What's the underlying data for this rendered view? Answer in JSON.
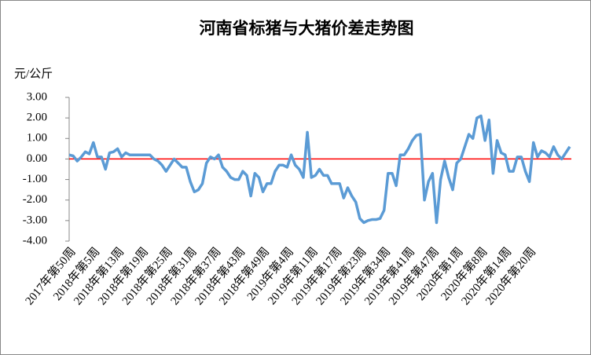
{
  "chart_data": {
    "type": "line",
    "title": "河南省标猪与大猪价差走势图",
    "y_label": "元/公斤",
    "categories": [
      "2017年第50周",
      null,
      null,
      null,
      null,
      null,
      "2018年第5周",
      null,
      null,
      null,
      null,
      null,
      "2018年第13周",
      null,
      null,
      null,
      null,
      null,
      "2018年第19周",
      null,
      null,
      null,
      null,
      null,
      "2018年第25周",
      null,
      null,
      null,
      null,
      null,
      "2018年第31周",
      null,
      null,
      null,
      null,
      null,
      "2018年第37周",
      null,
      null,
      null,
      null,
      null,
      "2018年第43周",
      null,
      null,
      null,
      null,
      null,
      "2018年第49周",
      null,
      null,
      null,
      null,
      null,
      "2019年第4周",
      null,
      null,
      null,
      null,
      null,
      "2019年第11周",
      null,
      null,
      null,
      null,
      null,
      "2019年第17周",
      null,
      null,
      null,
      null,
      null,
      "2019年第23周",
      null,
      null,
      null,
      null,
      null,
      "2019年第34周",
      null,
      null,
      null,
      null,
      null,
      "2019年第41周",
      null,
      null,
      null,
      null,
      null,
      "2019年第47周",
      null,
      null,
      null,
      null,
      null,
      "2020年第1周",
      null,
      null,
      null,
      null,
      null,
      "2020年第8周",
      null,
      null,
      null,
      null,
      null,
      "2020年第14周",
      null,
      null,
      null,
      null,
      null,
      "2020年第20周",
      null,
      null,
      null,
      null,
      null,
      null,
      null,
      null,
      null,
      null
    ],
    "series": [
      {
        "name": "价差",
        "color": "#5b9bd5",
        "values": [
          0.2,
          0.15,
          -0.1,
          0.1,
          0.35,
          0.25,
          0.8,
          0.1,
          0.1,
          -0.5,
          0.3,
          0.35,
          0.5,
          0.1,
          0.3,
          0.2,
          0.2,
          0.2,
          0.2,
          0.2,
          0.2,
          0.0,
          -0.1,
          -0.3,
          -0.6,
          -0.3,
          0,
          -0.2,
          -0.4,
          -0.4,
          -1.1,
          -1.6,
          -1.5,
          -1.2,
          -0.2,
          0.1,
          0.0,
          0.2,
          -0.4,
          -0.6,
          -0.9,
          -1.0,
          -1.0,
          -0.6,
          -0.8,
          -1.8,
          -0.7,
          -0.9,
          -1.6,
          -1.2,
          -1.2,
          -0.6,
          -0.3,
          -0.3,
          -0.4,
          0.2,
          -0.3,
          -0.5,
          -0.9,
          1.3,
          -0.9,
          -0.8,
          -0.5,
          -0.8,
          -0.8,
          -1.2,
          -1.2,
          -1.2,
          -1.9,
          -1.4,
          -1.8,
          -2.1,
          -2.9,
          -3.1,
          -3.0,
          -2.95,
          -2.95,
          -2.9,
          -2.5,
          -0.7,
          -0.7,
          -1.3,
          0.2,
          0.2,
          0.5,
          0.9,
          1.15,
          1.2,
          -2.0,
          -1.1,
          -0.7,
          -3.1,
          -1.0,
          -0.1,
          -0.9,
          -1.5,
          -0.2,
          0.0,
          0.6,
          1.2,
          1.0,
          2.0,
          2.1,
          0.9,
          1.9,
          -0.7,
          0.9,
          0.3,
          0.2,
          -0.6,
          -0.6,
          0.1,
          0.1,
          -0.6,
          -1.1,
          0.8,
          0.1,
          0.4,
          0.3,
          0.1,
          0.6,
          0.2,
          0.0,
          0.3,
          0.6
        ]
      }
    ],
    "ylim": [
      -4,
      3
    ],
    "yticks": [
      {
        "value": -4,
        "label": "-4.00"
      },
      {
        "value": -3,
        "label": "-3.00"
      },
      {
        "value": -2,
        "label": "-2.00"
      },
      {
        "value": -1,
        "label": "-1.00"
      },
      {
        "value": 0,
        "label": "0.00"
      },
      {
        "value": 1,
        "label": "1.00"
      },
      {
        "value": 2,
        "label": "2.00"
      },
      {
        "value": 3,
        "label": "3.00"
      }
    ],
    "zero_line_color": "#ff0000",
    "grid": false
  }
}
